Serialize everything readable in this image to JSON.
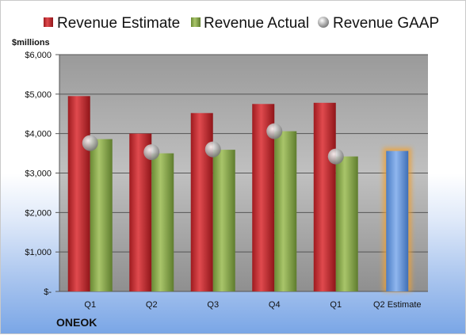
{
  "company": "ONEOK",
  "chart_data": {
    "type": "bar",
    "unit_label": "$millions",
    "categories": [
      "Q1",
      "Q2",
      "Q3",
      "Q4",
      "Q1",
      "Q2 Estimate"
    ],
    "series": [
      {
        "name": "Revenue Estimate",
        "kind": "bar",
        "color": "#c0262b",
        "values": [
          4950,
          4000,
          4520,
          4750,
          4780,
          null
        ]
      },
      {
        "name": "Revenue Actual",
        "kind": "bar",
        "color": "#8aa84b",
        "values": [
          3860,
          3500,
          3590,
          4060,
          3420,
          null
        ]
      },
      {
        "name": "Revenue GAAP",
        "kind": "marker",
        "color": "#b9b9b9",
        "values": [
          3760,
          3530,
          3600,
          4060,
          3420,
          null
        ]
      },
      {
        "name": "",
        "kind": "highlight-bar",
        "color": "#5b8fd6",
        "values": [
          null,
          null,
          null,
          null,
          null,
          3560
        ]
      }
    ],
    "y_ticks": [
      "$-",
      "$1,000",
      "$2,000",
      "$3,000",
      "$4,000",
      "$5,000",
      "$6,000"
    ],
    "ylim": [
      0,
      6000
    ],
    "grid": true,
    "legend_position": "top"
  }
}
